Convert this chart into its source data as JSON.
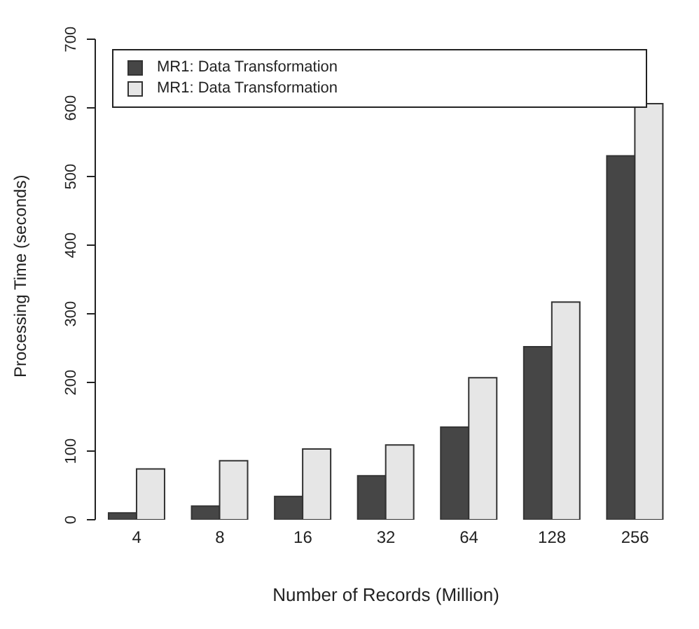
{
  "chart_data": {
    "type": "bar",
    "xlabel": "Number of Records (Million)",
    "ylabel": "Processing Time (seconds)",
    "categories": [
      "4",
      "8",
      "16",
      "32",
      "64",
      "128",
      "256"
    ],
    "series": [
      {
        "name": "MR1: Data Transformation",
        "color": "#464646",
        "values": [
          10,
          20,
          34,
          64,
          135,
          252,
          530
        ]
      },
      {
        "name": "MR1: Data Transformation",
        "color": "#e6e6e6",
        "values": [
          74,
          86,
          103,
          109,
          207,
          317,
          606
        ]
      }
    ],
    "ylim": [
      0,
      700
    ],
    "yticks": [
      0,
      100,
      200,
      300,
      400,
      500,
      600,
      700
    ],
    "grid": false,
    "legend": "top left"
  }
}
